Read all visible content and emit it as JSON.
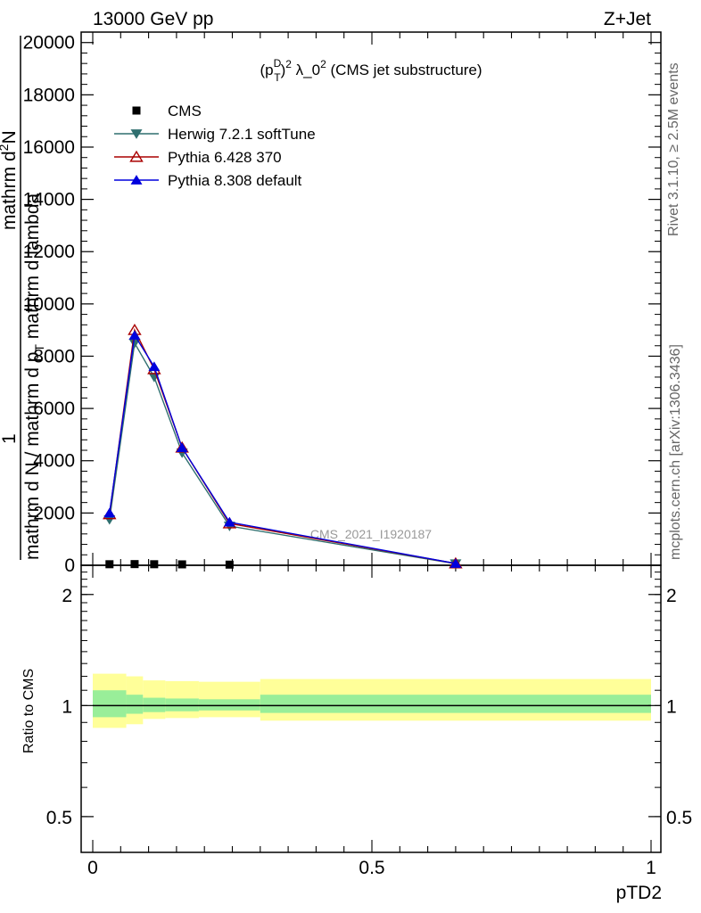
{
  "header": {
    "left": "13000 GeV pp",
    "right": "Z+Jet"
  },
  "side_labels": {
    "rivet": "Rivet 3.1.10, ≥ 2.5M events",
    "mcplots": "mcplots.cern.ch [arXiv:1306.3436]"
  },
  "watermark": "CMS_2021_I1920187",
  "colors": {
    "cms": "#000000",
    "herwig": "#2f6f6f",
    "pythia6": "#aa0000",
    "pythia8": "#0000dd",
    "band_outer": "#ffff99",
    "band_inner": "#99ee99"
  },
  "chart_data": [
    {
      "type": "line",
      "panel": "main",
      "title_parts": {
        "open": "(p",
        "sup": "D",
        "sub": "T",
        "close": ")",
        "power": "2",
        "lambda": " λ_0",
        "lambda_power": "2",
        "rest": " (CMS jet substructure)"
      },
      "ylabel": {
        "numerator_one": "1",
        "denominator": "mathrm d N / mathrm d p",
        "denominator_sub": "T",
        "denominator_rest": " mathrm d lambda",
        "numerator_right": "mathrm d",
        "numerator_sup": "2",
        "numerator_n": "N"
      },
      "xlim": [
        0,
        1
      ],
      "ylim": [
        0,
        20400
      ],
      "yticks": [
        0,
        2000,
        4000,
        6000,
        8000,
        10000,
        12000,
        14000,
        16000,
        18000,
        20000
      ],
      "ytick_labels": [
        "0",
        "2000",
        "4000",
        "6000",
        "8000",
        "10000",
        "12000",
        "14000",
        "16000",
        "18000",
        "20000"
      ],
      "legend_position": "top-left",
      "series": [
        {
          "name": "CMS",
          "marker": "square",
          "x": [
            0.03,
            0.075,
            0.11,
            0.16,
            0.245
          ],
          "y": [
            40,
            45,
            40,
            35,
            25
          ]
        },
        {
          "name": "Herwig 7.2.1 softTune",
          "marker": "triangle-down",
          "x": [
            0.03,
            0.075,
            0.11,
            0.16,
            0.245,
            0.65
          ],
          "y": [
            1750,
            8500,
            7200,
            4300,
            1500,
            60
          ]
        },
        {
          "name": "Pythia 6.428 370",
          "marker": "triangle-up-open",
          "x": [
            0.03,
            0.075,
            0.11,
            0.16,
            0.245,
            0.65
          ],
          "y": [
            1950,
            9000,
            7500,
            4500,
            1600,
            70
          ]
        },
        {
          "name": "Pythia 8.308 default",
          "marker": "triangle-up",
          "x": [
            0.03,
            0.075,
            0.11,
            0.16,
            0.245,
            0.65
          ],
          "y": [
            2000,
            8800,
            7600,
            4500,
            1650,
            70
          ]
        }
      ]
    },
    {
      "type": "area",
      "panel": "ratio",
      "ylabel": "Ratio to CMS",
      "xlabel": "pTD2",
      "xlim": [
        0,
        1
      ],
      "xticks": [
        0,
        0.5,
        1
      ],
      "xtick_labels": [
        "0",
        "0.5",
        "1"
      ],
      "yscale": "log",
      "ylim": [
        0.4,
        2.4
      ],
      "yticks": [
        0.5,
        1,
        2
      ],
      "ytick_labels": [
        "0.5",
        "1",
        "2"
      ],
      "reference_line": 1,
      "bins": [
        {
          "x_low": 0.0,
          "x_high": 0.06,
          "outer": [
            0.87,
            1.22
          ],
          "inner": [
            0.93,
            1.1
          ]
        },
        {
          "x_low": 0.06,
          "x_high": 0.09,
          "outer": [
            0.89,
            1.2
          ],
          "inner": [
            0.95,
            1.07
          ]
        },
        {
          "x_low": 0.09,
          "x_high": 0.13,
          "outer": [
            0.92,
            1.17
          ],
          "inner": [
            0.96,
            1.05
          ]
        },
        {
          "x_low": 0.13,
          "x_high": 0.19,
          "outer": [
            0.925,
            1.165
          ],
          "inner": [
            0.965,
            1.045
          ]
        },
        {
          "x_low": 0.19,
          "x_high": 0.3,
          "outer": [
            0.93,
            1.16
          ],
          "inner": [
            0.97,
            1.04
          ]
        },
        {
          "x_low": 0.3,
          "x_high": 1.0,
          "outer": [
            0.91,
            1.18
          ],
          "inner": [
            0.955,
            1.07
          ]
        }
      ]
    }
  ]
}
